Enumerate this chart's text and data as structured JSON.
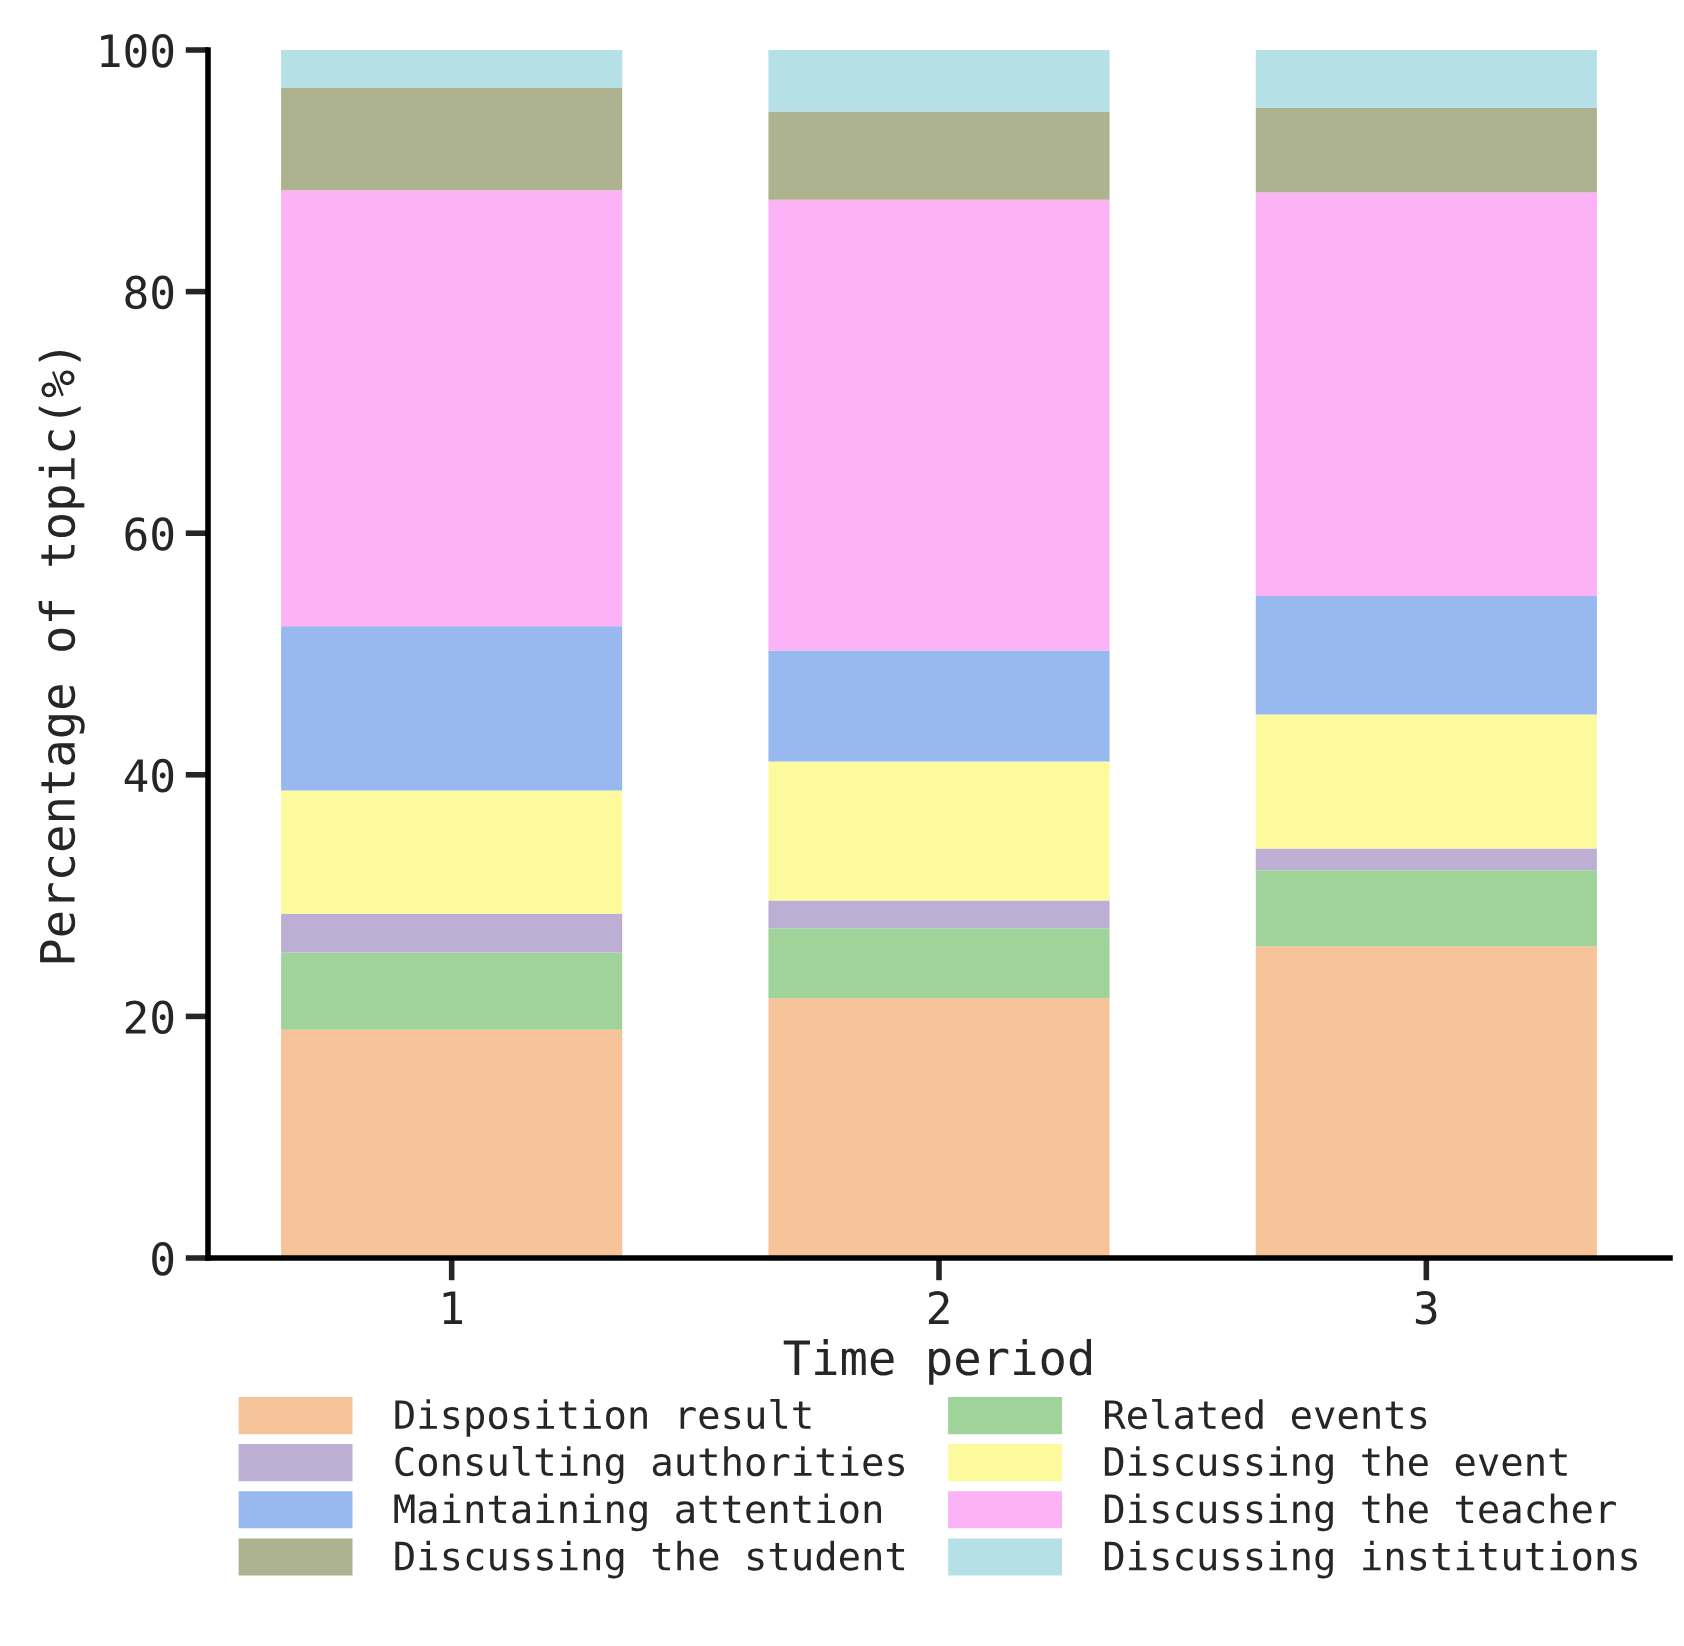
{
  "chart_data": {
    "type": "bar",
    "stacked": true,
    "xlabel": "Time period",
    "ylabel": "Percentage of topic(%)",
    "categories": [
      "1",
      "2",
      "3"
    ],
    "series": [
      {
        "name": "Disposition result",
        "color": "#f7c398",
        "values": [
          18.9,
          21.5,
          25.8
        ]
      },
      {
        "name": "Related events",
        "color": "#9fd39a",
        "values": [
          6.4,
          5.8,
          6.3
        ]
      },
      {
        "name": "Consulting authorities",
        "color": "#bdafd3",
        "values": [
          3.2,
          2.3,
          1.8
        ]
      },
      {
        "name": "Discussing the event",
        "color": "#fdfa9e",
        "values": [
          10.2,
          11.5,
          11.1
        ]
      },
      {
        "name": "Maintaining attention",
        "color": "#97b9f0",
        "values": [
          13.6,
          9.2,
          9.8
        ]
      },
      {
        "name": "Discussing the teacher",
        "color": "#fbb3f5",
        "values": [
          36.1,
          37.3,
          33.4
        ]
      },
      {
        "name": "Discussing the student",
        "color": "#adb38f",
        "values": [
          8.5,
          7.3,
          7.0
        ]
      },
      {
        "name": "Discussing institutions",
        "color": "#b5e1e6",
        "values": [
          3.1,
          5.1,
          4.8
        ]
      }
    ],
    "ylim": [
      0,
      100
    ],
    "yticks": [
      0,
      20,
      40,
      60,
      80,
      100
    ],
    "grid": false,
    "legend": "bottom"
  }
}
